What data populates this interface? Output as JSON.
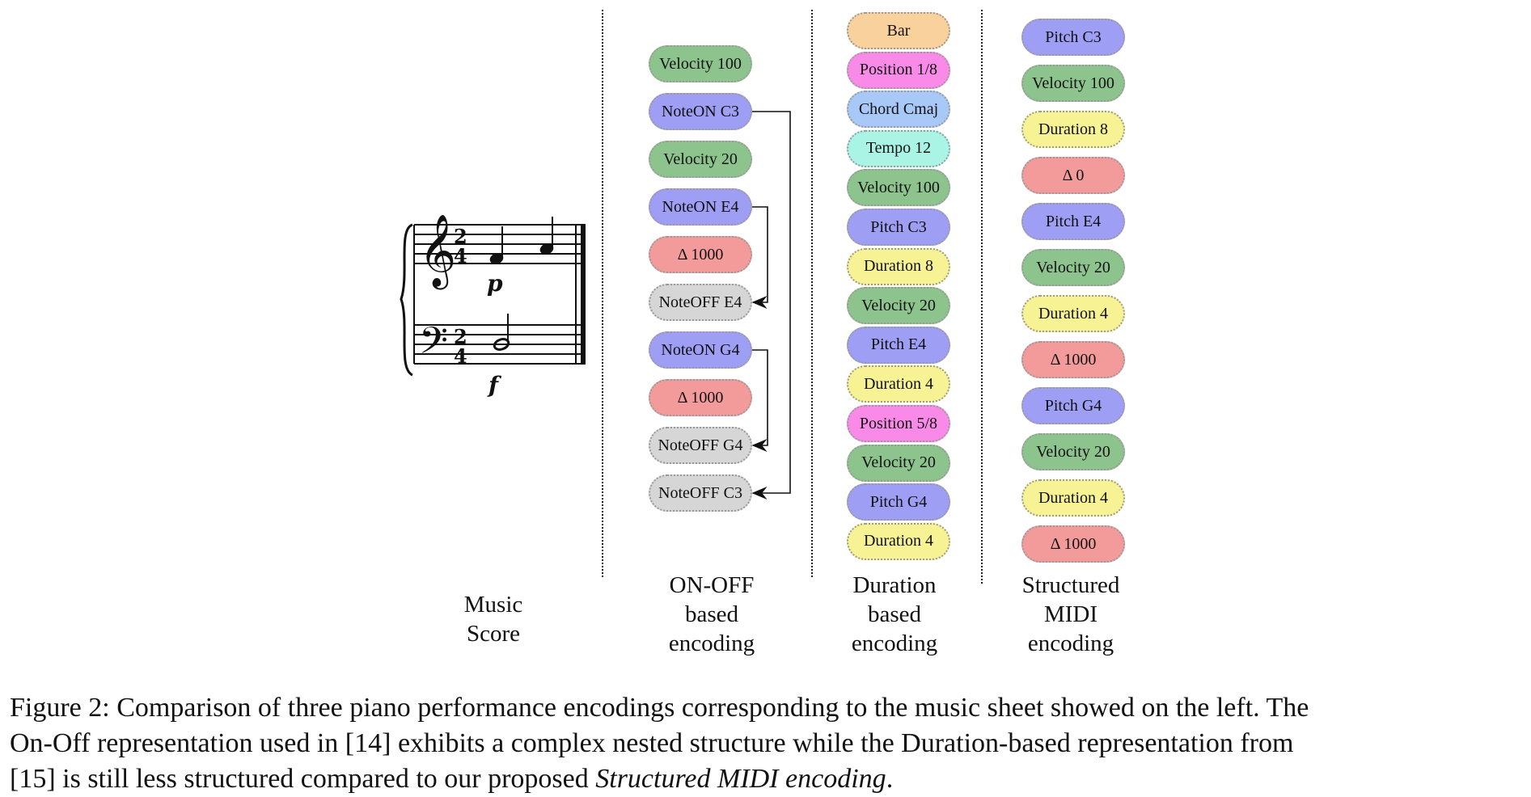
{
  "colors": {
    "velocity": "#8dc38d",
    "note_on": "#9e9ef5",
    "delta": "#f39a9a",
    "note_off": "#d6d6d6",
    "bar": "#f9d19c",
    "position": "#f98ae8",
    "chord": "#a8c8f7",
    "tempo": "#aaf4e6",
    "pitch": "#9e9ef5",
    "duration": "#f7f394"
  },
  "score": {
    "title": [
      "Music",
      "Score"
    ],
    "time_signature": "2/4",
    "dynamics_upper": "p",
    "dynamics_lower": "f"
  },
  "columns": [
    {
      "id": "on-off",
      "title": [
        "ON-OFF",
        "based",
        "encoding"
      ],
      "tokens": [
        {
          "label": "Velocity 100",
          "kind": "velocity"
        },
        {
          "label": "NoteON C3",
          "kind": "note_on"
        },
        {
          "label": "Velocity 20",
          "kind": "velocity"
        },
        {
          "label": "NoteON E4",
          "kind": "note_on"
        },
        {
          "label": "Δ 1000",
          "kind": "delta"
        },
        {
          "label": "NoteOFF E4",
          "kind": "note_off"
        },
        {
          "label": "NoteON G4",
          "kind": "note_on"
        },
        {
          "label": "Δ 1000",
          "kind": "delta"
        },
        {
          "label": "NoteOFF G4",
          "kind": "note_off"
        },
        {
          "label": "NoteOFF C3",
          "kind": "note_off"
        }
      ],
      "links": [
        [
          3,
          5
        ],
        [
          6,
          8
        ],
        [
          1,
          9
        ]
      ]
    },
    {
      "id": "duration",
      "title": [
        "Duration",
        "based",
        "encoding"
      ],
      "tokens": [
        {
          "label": "Bar",
          "kind": "bar"
        },
        {
          "label": "Position 1/8",
          "kind": "position"
        },
        {
          "label": "Chord Cmaj",
          "kind": "chord"
        },
        {
          "label": "Tempo 12",
          "kind": "tempo"
        },
        {
          "label": "Velocity 100",
          "kind": "velocity"
        },
        {
          "label": "Pitch C3",
          "kind": "pitch"
        },
        {
          "label": "Duration 8",
          "kind": "duration"
        },
        {
          "label": "Velocity 20",
          "kind": "velocity"
        },
        {
          "label": "Pitch E4",
          "kind": "pitch"
        },
        {
          "label": "Duration 4",
          "kind": "duration"
        },
        {
          "label": "Position 5/8",
          "kind": "position"
        },
        {
          "label": "Velocity 20",
          "kind": "velocity"
        },
        {
          "label": "Pitch G4",
          "kind": "pitch"
        },
        {
          "label": "Duration 4",
          "kind": "duration"
        }
      ]
    },
    {
      "id": "structured",
      "title": [
        "Structured",
        "MIDI",
        "encoding"
      ],
      "tokens": [
        {
          "label": "Pitch C3",
          "kind": "pitch"
        },
        {
          "label": "Velocity 100",
          "kind": "velocity"
        },
        {
          "label": "Duration 8",
          "kind": "duration"
        },
        {
          "label": "Δ 0",
          "kind": "delta"
        },
        {
          "label": "Pitch E4",
          "kind": "pitch"
        },
        {
          "label": "Velocity 20",
          "kind": "velocity"
        },
        {
          "label": "Duration 4",
          "kind": "duration"
        },
        {
          "label": "Δ 1000",
          "kind": "delta"
        },
        {
          "label": "Pitch G4",
          "kind": "pitch"
        },
        {
          "label": "Velocity 20",
          "kind": "velocity"
        },
        {
          "label": "Duration 4",
          "kind": "duration"
        },
        {
          "label": "Δ 1000",
          "kind": "delta"
        }
      ]
    }
  ],
  "caption": {
    "line1": "Figure 2: Comparison of three piano performance encodings corresponding to the music sheet showed on the left. The",
    "line2": "On-Off representation used in [14] exhibits a complex nested structure while the Duration-based representation from",
    "line3_prefix": "[15] is still less structured compared to our proposed ",
    "line3_emph": "Structured MIDI encoding",
    "line3_suffix": "."
  }
}
